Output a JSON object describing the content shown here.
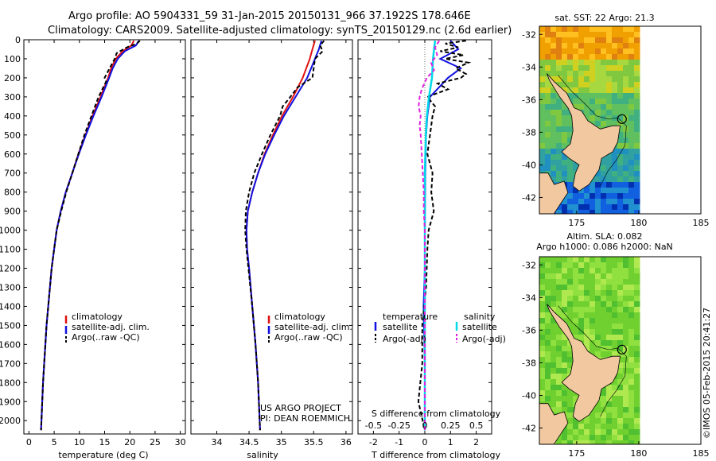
{
  "header": {
    "line1": "Argo profile: AO 5904331_59 31-Jan-2015 20150131_966 37.1922S 178.646E",
    "line2": "Climatology: CARS2009. Satellite-adjusted climatology: synTS_20150129.nc (2.6d earlier)"
  },
  "colors": {
    "climatology": "#e01010",
    "satellite": "#1010e0",
    "argo": "#000000",
    "sal_sat": "#00d8e8",
    "sal_argo": "#e020e0",
    "land": "#f2c8a0"
  },
  "depth_axis": {
    "ticks": [
      0,
      100,
      200,
      300,
      400,
      500,
      600,
      700,
      800,
      900,
      1000,
      1100,
      1200,
      1300,
      1400,
      1500,
      1600,
      1700,
      1800,
      1900,
      2000
    ],
    "range": [
      0,
      2070
    ]
  },
  "chart_data": [
    {
      "type": "line",
      "name": "temperature",
      "xlabel": "temperature (deg C)",
      "xlim": [
        -1,
        31
      ],
      "xticks": [
        0,
        5,
        10,
        15,
        20,
        25,
        30
      ],
      "legend": [
        "climatology",
        "satellite-adj. clim.",
        "Argo(..raw -QC)"
      ],
      "series": [
        {
          "name": "climatology",
          "depth": [
            5,
            30,
            60,
            100,
            150,
            200,
            300,
            400,
            500,
            600,
            700,
            800,
            900,
            1000,
            1200,
            1500,
            1800,
            2050
          ],
          "values": [
            20.8,
            20.3,
            18.6,
            17.2,
            16.3,
            15.7,
            14.2,
            12.6,
            11.2,
            9.8,
            8.6,
            7.3,
            6.3,
            5.5,
            4.5,
            3.5,
            2.8,
            2.4
          ]
        },
        {
          "name": "satellite-adj. clim.",
          "depth": [
            5,
            30,
            60,
            100,
            150,
            200,
            300,
            400,
            500,
            600,
            700,
            800,
            900,
            1000,
            1200,
            1500,
            1800,
            2050
          ],
          "values": [
            21.8,
            21.2,
            19.0,
            17.6,
            16.6,
            15.9,
            14.4,
            12.8,
            11.3,
            9.9,
            8.6,
            7.3,
            6.3,
            5.5,
            4.5,
            3.5,
            2.8,
            2.4
          ]
        },
        {
          "name": "Argo(..raw -QC)",
          "depth": [
            5,
            20,
            40,
            70,
            100,
            150,
            200,
            220,
            300,
            400,
            500,
            600,
            700,
            800,
            900,
            1000,
            1200,
            1500,
            1800,
            2050
          ],
          "values": [
            22.0,
            21.4,
            19.4,
            17.4,
            17.0,
            16.0,
            15.0,
            15.3,
            13.8,
            12.4,
            11.0,
            9.8,
            8.6,
            7.4,
            6.4,
            5.5,
            4.5,
            3.5,
            2.8,
            2.4
          ]
        }
      ]
    },
    {
      "type": "line",
      "name": "salinity",
      "xlabel": "salinity",
      "xlim": [
        33.6,
        36.1
      ],
      "xticks": [
        34,
        34.5,
        35,
        35.5,
        36
      ],
      "legend": [
        "climatology",
        "satellite-adj. clim.",
        "Argo(..raw -QC)"
      ],
      "credit": [
        "US ARGO PROJECT",
        "PI: DEAN ROEMMICH"
      ],
      "series": [
        {
          "name": "climatology",
          "depth": [
            5,
            50,
            100,
            200,
            300,
            400,
            500,
            600,
            700,
            800,
            900,
            1000,
            1100,
            1200,
            1400,
            1600,
            1800,
            2050
          ],
          "values": [
            35.52,
            35.48,
            35.44,
            35.33,
            35.18,
            35.01,
            34.87,
            34.74,
            34.64,
            34.55,
            34.48,
            34.46,
            34.47,
            34.5,
            34.55,
            34.6,
            34.64,
            34.67
          ]
        },
        {
          "name": "satellite-adj. clim.",
          "depth": [
            5,
            50,
            100,
            200,
            300,
            400,
            500,
            600,
            700,
            800,
            900,
            1000,
            1100,
            1200,
            1400,
            1600,
            1800,
            2050
          ],
          "values": [
            35.62,
            35.58,
            35.52,
            35.4,
            35.22,
            35.04,
            34.89,
            34.75,
            34.64,
            34.55,
            34.48,
            34.46,
            34.47,
            34.5,
            34.55,
            34.6,
            34.64,
            34.67
          ]
        },
        {
          "name": "Argo(..raw -QC)",
          "depth": [
            5,
            30,
            60,
            100,
            150,
            200,
            250,
            300,
            350,
            400,
            500,
            600,
            700,
            800,
            900,
            1000,
            1100,
            1200,
            1400,
            1600,
            1800,
            2050
          ],
          "values": [
            35.66,
            35.6,
            35.64,
            35.52,
            35.5,
            35.48,
            35.25,
            35.14,
            35.02,
            34.98,
            34.83,
            34.7,
            34.58,
            34.5,
            34.45,
            34.44,
            34.46,
            34.49,
            34.55,
            34.6,
            34.64,
            34.67
          ]
        }
      ]
    },
    {
      "type": "line",
      "name": "difference",
      "xlabel": "T difference from climatology",
      "xlabel_top": "S difference from climatology",
      "xlim": [
        -2.6,
        2.6
      ],
      "xticks": [
        -2,
        -1,
        0,
        1,
        2
      ],
      "xticklabels": [
        "-2",
        "-1",
        "0",
        "1",
        "2"
      ],
      "s_ticks": [
        -0.5,
        -0.25,
        0,
        0.25,
        0.5
      ],
      "s_ticklabels": [
        "-0.5",
        "-0.25",
        "0",
        "0.25",
        "0.5"
      ],
      "legend_temperature": [
        "temperature",
        "satellite",
        "Argo(-adj)"
      ],
      "legend_salinity": [
        "salinity",
        "satellite",
        "Argo(-adj)"
      ],
      "series": [
        {
          "name": "T satellite",
          "depth": [
            5,
            50,
            100,
            150,
            200,
            300,
            400,
            500,
            700,
            1000,
            1200,
            1400,
            1700,
            2050
          ],
          "values": [
            1.0,
            1.3,
            0.6,
            1.4,
            0.9,
            0.2,
            0.1,
            0.05,
            0.02,
            0.0,
            0.0,
            -0.05,
            0.0,
            0.0
          ]
        },
        {
          "name": "T Argo(-adj)",
          "depth": [
            5,
            20,
            40,
            60,
            80,
            100,
            120,
            150,
            180,
            200,
            230,
            260,
            300,
            350,
            400,
            500,
            600,
            700,
            800,
            900,
            1000,
            1100,
            1300,
            1500,
            1700,
            1900,
            2050
          ],
          "values": [
            1.6,
            0.8,
            1.3,
            0.6,
            1.5,
            0.8,
            1.7,
            1.2,
            1.6,
            1.4,
            0.5,
            0.9,
            0.1,
            0.4,
            0.3,
            0.2,
            0.1,
            0.3,
            0.25,
            0.35,
            0.15,
            0.1,
            0.05,
            -0.1,
            -0.1,
            -0.25,
            0.0
          ]
        },
        {
          "name": "S satellite",
          "depth": [
            5,
            50,
            100,
            200,
            300,
            400,
            500,
            700,
            1000,
            1500,
            2050
          ],
          "values": [
            0.1,
            0.09,
            0.08,
            0.07,
            0.04,
            0.02,
            0.01,
            0.0,
            0.0,
            0.0,
            0.0
          ]
        },
        {
          "name": "S Argo(-adj)",
          "depth": [
            5,
            40,
            80,
            120,
            160,
            200,
            260,
            300,
            350,
            400,
            450,
            500,
            600,
            700,
            800,
            900,
            1000,
            1200,
            1500,
            2050
          ],
          "values": [
            0.14,
            0.1,
            0.12,
            0.06,
            0.09,
            0.02,
            -0.03,
            -0.05,
            -0.06,
            -0.04,
            -0.05,
            -0.04,
            -0.03,
            -0.02,
            -0.01,
            -0.01,
            0.0,
            0.0,
            0.0,
            0.0
          ]
        }
      ]
    },
    {
      "type": "heatmap",
      "name": "sst_map",
      "title": "sat. SST: 22 Argo: 21.3",
      "xlim": [
        172,
        185
      ],
      "ylim": [
        -43,
        -31.5
      ],
      "xticks": [
        175,
        180,
        185
      ],
      "yticks": [
        -32,
        -34,
        -36,
        -38,
        -40,
        -42
      ],
      "argo_position": {
        "lon": 178.646,
        "lat": -37.1922
      }
    },
    {
      "type": "heatmap",
      "name": "sla_map",
      "title_lines": [
        "Altim. SLA: 0.082",
        "Argo h1000: 0.086 h2000: NaN"
      ],
      "xlim": [
        172,
        185
      ],
      "ylim": [
        -43,
        -31.5
      ],
      "xticks": [
        175,
        180,
        185
      ],
      "yticks": [
        -32,
        -34,
        -36,
        -38,
        -40,
        -42
      ],
      "argo_position": {
        "lon": 178.646,
        "lat": -37.1922
      }
    }
  ],
  "footer_stamp": "©IMOS 05-Feb-2015 20:41:27"
}
